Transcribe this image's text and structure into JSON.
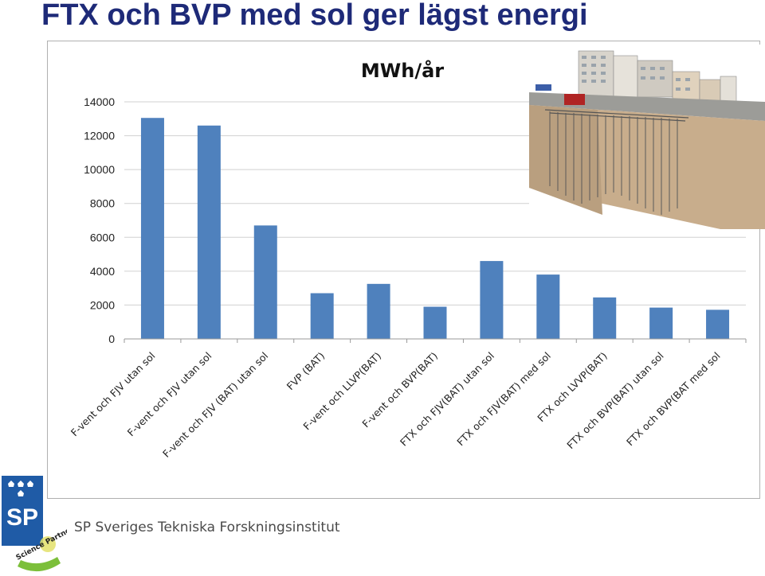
{
  "slide": {
    "title": "FTX och BVP med sol ger lägst energi"
  },
  "footer": {
    "organization": "SP Sveriges Tekniska Forskningsinstitut",
    "logo_text": "SP",
    "badge_text": "Science Partner"
  },
  "colors": {
    "bar": "#4f81bd",
    "title": "#1e2a78",
    "grid": "#d0d0d0"
  },
  "chart_data": {
    "type": "bar",
    "title": "MWh/år",
    "xlabel": "",
    "ylabel": "",
    "ylim": [
      0,
      14000
    ],
    "yticks": [
      0,
      2000,
      4000,
      6000,
      8000,
      10000,
      12000,
      14000
    ],
    "grid": true,
    "legend": "none",
    "categories": [
      "F-vent och FJV utan sol",
      "F-vent och FJV utan sol",
      "F-vent och FJV (BAT) utan sol",
      "FVP (BAT)",
      "F-vent och LLVP(BAT)",
      "F-vent och BVP(BAT)",
      "FTX och FJV(BAT) utan sol",
      "FTX och FJV(BAT) med sol",
      "FTX och LVVP(BAT)",
      "FTX och BVP(BAT) utan sol",
      "FTX och BVP(BAT med sol"
    ],
    "values": [
      13050,
      12600,
      6700,
      2700,
      3250,
      1900,
      4600,
      3800,
      2450,
      1850,
      1720
    ]
  }
}
